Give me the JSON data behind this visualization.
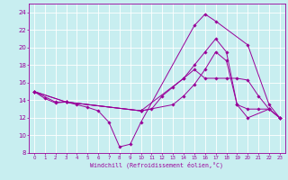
{
  "title": "",
  "xlabel": "Windchill (Refroidissement éolien,°C)",
  "ylabel": "",
  "bg_color": "#c8eef0",
  "line_color": "#990099",
  "grid_color": "#ffffff",
  "xlim": [
    -0.5,
    23.5
  ],
  "ylim": [
    8,
    25
  ],
  "xticks": [
    0,
    1,
    2,
    3,
    4,
    5,
    6,
    7,
    8,
    9,
    10,
    11,
    12,
    13,
    14,
    15,
    16,
    17,
    18,
    19,
    20,
    21,
    22,
    23
  ],
  "yticks": [
    8,
    10,
    12,
    14,
    16,
    18,
    20,
    22,
    24
  ],
  "lines": [
    {
      "x": [
        0,
        1,
        2,
        3,
        4,
        5,
        6,
        7,
        8,
        9,
        10,
        15,
        16,
        17,
        20,
        22,
        23
      ],
      "y": [
        15,
        14.2,
        13.7,
        13.8,
        13.5,
        13.2,
        12.8,
        11.5,
        8.7,
        9.0,
        11.5,
        22.5,
        23.8,
        23.0,
        20.3,
        13.5,
        12.0
      ]
    },
    {
      "x": [
        0,
        2,
        3,
        10,
        14,
        15,
        16,
        17,
        18,
        19,
        20,
        21,
        22,
        23
      ],
      "y": [
        15,
        13.8,
        13.8,
        12.8,
        16.5,
        17.5,
        16.5,
        16.5,
        16.5,
        16.5,
        16.3,
        14.5,
        13.0,
        12.0
      ]
    },
    {
      "x": [
        0,
        3,
        10,
        13,
        14,
        15,
        16,
        17,
        18,
        19,
        20,
        21,
        22,
        23
      ],
      "y": [
        15,
        13.8,
        12.8,
        13.5,
        14.5,
        15.8,
        17.5,
        19.5,
        18.5,
        13.5,
        13.0,
        13.0,
        13.0,
        12.0
      ]
    },
    {
      "x": [
        0,
        3,
        10,
        11,
        12,
        13,
        14,
        15,
        16,
        17,
        18,
        19,
        20,
        22,
        23
      ],
      "y": [
        15,
        13.8,
        12.8,
        13.0,
        14.5,
        15.5,
        16.5,
        18.0,
        19.5,
        21.0,
        19.5,
        13.5,
        12.0,
        13.0,
        12.0
      ]
    }
  ]
}
